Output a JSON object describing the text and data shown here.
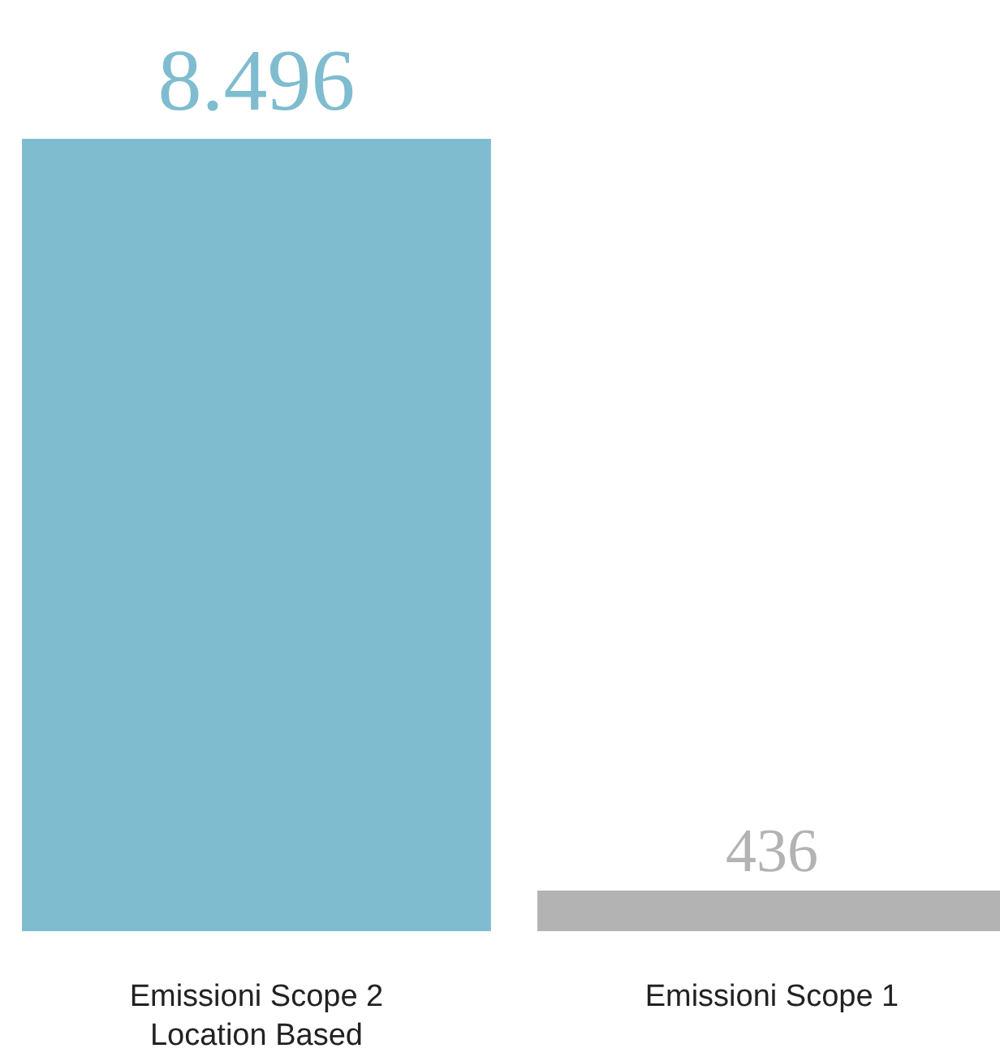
{
  "chart_data": {
    "type": "bar",
    "categories": [
      "Emissioni Scope 2\nLocation Based",
      "Emissioni Scope 1"
    ],
    "values": [
      8496,
      436
    ],
    "colors": [
      "#7fbccf",
      "#b3b3b3"
    ],
    "value_labels": [
      "8.496",
      "436"
    ]
  }
}
